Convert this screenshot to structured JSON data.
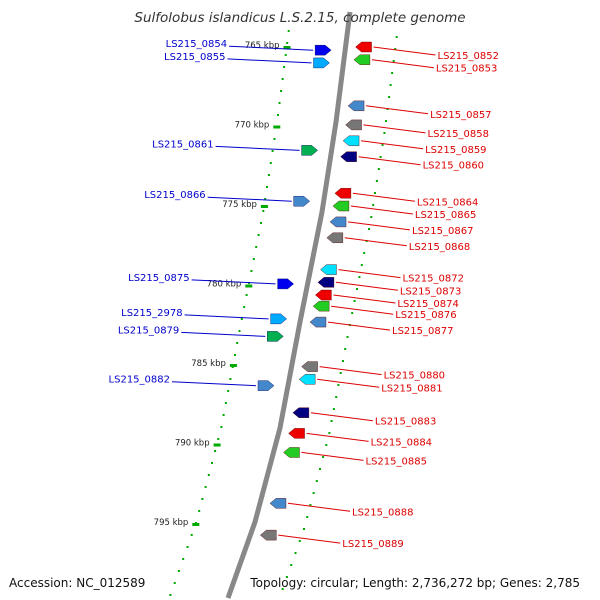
{
  "title": "Sulfolobus islandicus L.S.2.15, complete genome",
  "accession": "Accession: NC_012589",
  "topology": "Topology: circular; Length: 2,736,272 bp; Genes: 2,785",
  "colors": {
    "backbone": "#8a8a8a",
    "forward_label": "#0000cc",
    "reverse_label": "#dd0000",
    "tick": "#00aa00"
  },
  "ticks": [
    {
      "kbp": 765,
      "label": "765 kbp"
    },
    {
      "kbp": 770,
      "label": "770 kbp"
    },
    {
      "kbp": 775,
      "label": "775 kbp"
    },
    {
      "kbp": 780,
      "label": "780 kbp"
    },
    {
      "kbp": 785,
      "label": "785 kbp"
    },
    {
      "kbp": 790,
      "label": "790 kbp"
    },
    {
      "kbp": 795,
      "label": "795 kbp"
    }
  ],
  "forward_genes": [
    {
      "label": "LS215_0854",
      "kbp": 765.2
    },
    {
      "label": "LS215_0855",
      "kbp": 766.0
    },
    {
      "label": "LS215_0861",
      "kbp": 771.5
    },
    {
      "label": "LS215_0866",
      "kbp": 774.7
    },
    {
      "label": "LS215_0875",
      "kbp": 779.9
    },
    {
      "label": "LS215_2978",
      "kbp": 782.1
    },
    {
      "label": "LS215_0879",
      "kbp": 783.2
    },
    {
      "label": "LS215_0882",
      "kbp": 786.3
    }
  ],
  "reverse_genes": [
    {
      "label": "LS215_0852",
      "kbp": 765.0
    },
    {
      "label": "LS215_0853",
      "kbp": 765.8
    },
    {
      "label": "LS215_0857",
      "kbp": 768.7
    },
    {
      "label": "LS215_0858",
      "kbp": 769.9
    },
    {
      "label": "LS215_0859",
      "kbp": 770.9
    },
    {
      "label": "LS215_0860",
      "kbp": 771.9
    },
    {
      "label": "LS215_0864",
      "kbp": 774.2
    },
    {
      "label": "LS215_0865",
      "kbp": 775.0
    },
    {
      "label": "LS215_0867",
      "kbp": 776.0
    },
    {
      "label": "LS215_0868",
      "kbp": 777.0
    },
    {
      "label": "LS215_0872",
      "kbp": 779.0
    },
    {
      "label": "LS215_0873",
      "kbp": 779.8
    },
    {
      "label": "LS215_0874",
      "kbp": 780.6
    },
    {
      "label": "LS215_0876",
      "kbp": 781.3
    },
    {
      "label": "LS215_0877",
      "kbp": 782.3
    },
    {
      "label": "LS215_0880",
      "kbp": 785.1
    },
    {
      "label": "LS215_0881",
      "kbp": 785.9
    },
    {
      "label": "LS215_0883",
      "kbp": 788.0
    },
    {
      "label": "LS215_0884",
      "kbp": 789.3
    },
    {
      "label": "LS215_0885",
      "kbp": 790.5
    },
    {
      "label": "LS215_0888",
      "kbp": 793.7
    },
    {
      "label": "LS215_0889",
      "kbp": 795.7
    }
  ]
}
